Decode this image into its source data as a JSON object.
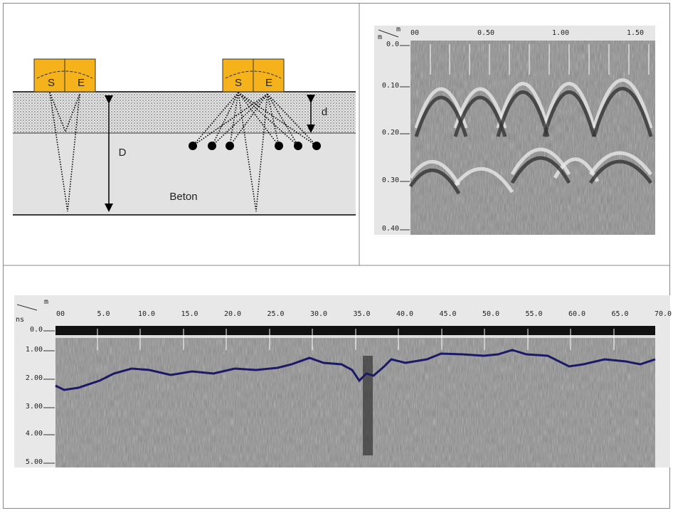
{
  "diagram": {
    "antennas": [
      {
        "send": "S",
        "receive": "E"
      },
      {
        "send": "S",
        "receive": "E"
      }
    ],
    "thickness_label": "d",
    "depth_label": "D",
    "material": "Beton"
  },
  "radargram_top": {
    "x_unit": "m",
    "y_unit": "m",
    "x_labels": [
      "00",
      "0.50",
      "1.00",
      "1.50"
    ],
    "y_labels": [
      "0.0",
      "0.10",
      "0.20",
      "0.30",
      "0.40"
    ]
  },
  "radargram_bottom": {
    "x_unit": "m",
    "y_unit": "ns",
    "x_labels": [
      "00",
      "5.0",
      "10.0",
      "15.0",
      "20.0",
      "25.0",
      "30.0",
      "35.0",
      "40.0",
      "45.0",
      "50.0",
      "55.0",
      "60.0",
      "65.0",
      "70.0"
    ],
    "y_labels": [
      "0.0",
      "1.00",
      "2.00",
      "3.00",
      "4.00",
      "5.00"
    ]
  }
}
